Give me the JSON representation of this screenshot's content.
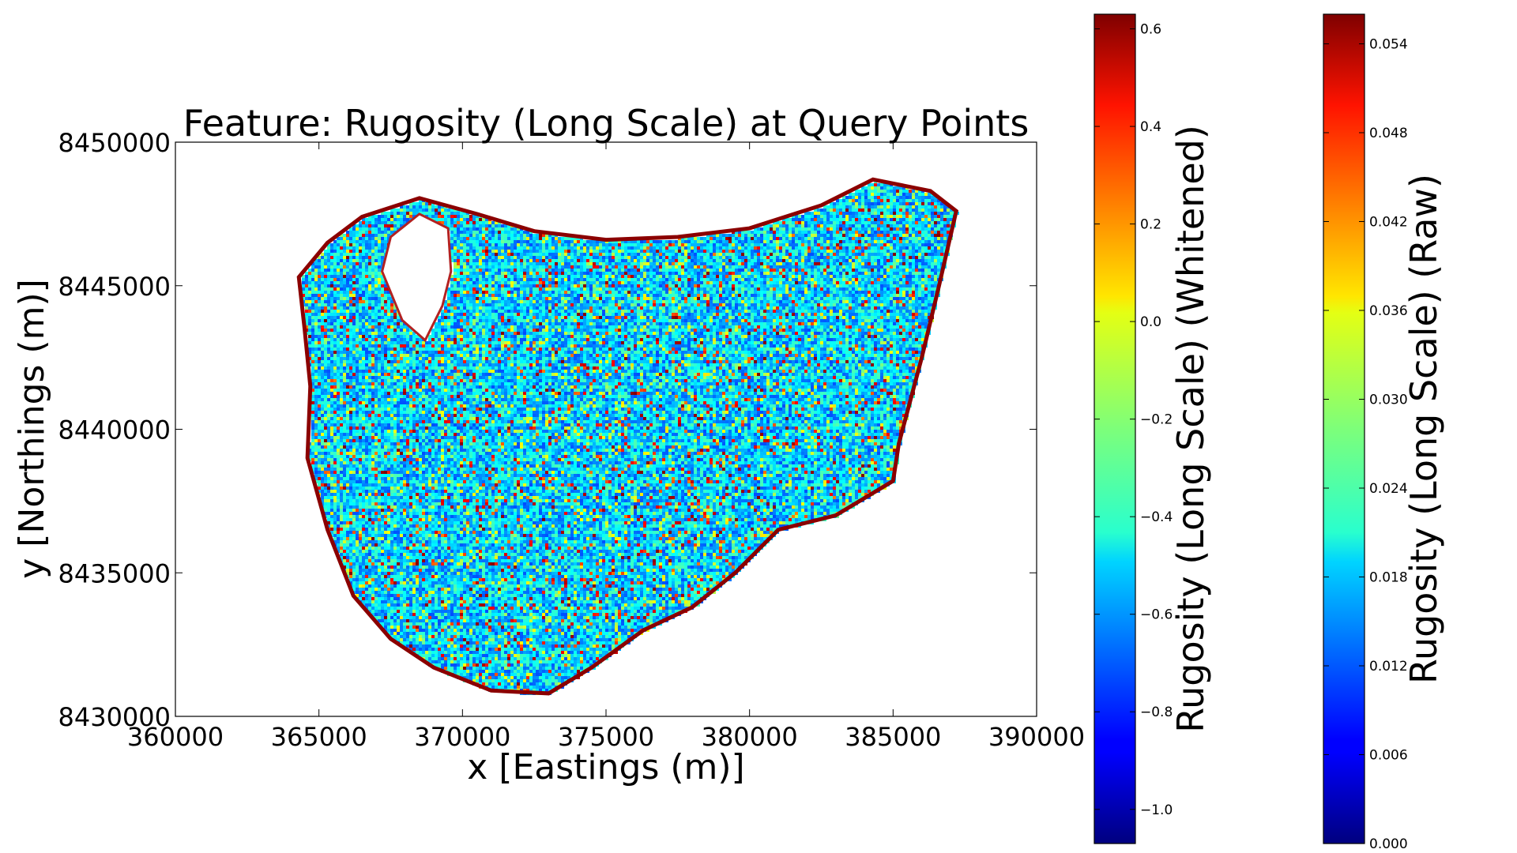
{
  "chart_data": {
    "type": "scatter",
    "title": "Feature: Rugosity (Long Scale) at Query Points",
    "xlabel": "x [Eastings (m)]",
    "ylabel": "y [Northings (m)]",
    "xlim": [
      360000,
      390000
    ],
    "ylim": [
      8430000,
      8450000
    ],
    "x_ticks": [
      360000,
      365000,
      370000,
      375000,
      380000,
      385000,
      390000
    ],
    "y_ticks": [
      8430000,
      8435000,
      8440000,
      8445000,
      8450000
    ],
    "x_tick_labels": [
      "360000",
      "365000",
      "370000",
      "375000",
      "380000",
      "385000",
      "390000"
    ],
    "y_tick_labels": [
      "8430000",
      "8435000",
      "8440000",
      "8445000",
      "8450000"
    ],
    "grid": false,
    "colormap": "jet",
    "region_outline": [
      [
        365300,
        8446500
      ],
      [
        366500,
        8447400
      ],
      [
        368500,
        8448050
      ],
      [
        370500,
        8447500
      ],
      [
        372500,
        8446900
      ],
      [
        375000,
        8446600
      ],
      [
        377500,
        8446700
      ],
      [
        380000,
        8447000
      ],
      [
        382500,
        8447800
      ],
      [
        384300,
        8448700
      ],
      [
        386300,
        8448300
      ],
      [
        387200,
        8447600
      ],
      [
        386600,
        8445000
      ],
      [
        386000,
        8442500
      ],
      [
        385200,
        8439500
      ],
      [
        385000,
        8438200
      ],
      [
        383000,
        8437000
      ],
      [
        381000,
        8436500
      ],
      [
        379500,
        8435000
      ],
      [
        378000,
        8433800
      ],
      [
        376300,
        8433000
      ],
      [
        374500,
        8431700
      ],
      [
        373000,
        8430800
      ],
      [
        371000,
        8430900
      ],
      [
        369000,
        8431700
      ],
      [
        367500,
        8432700
      ],
      [
        366200,
        8434200
      ],
      [
        365300,
        8436500
      ],
      [
        364600,
        8439000
      ],
      [
        364700,
        8441500
      ],
      [
        364500,
        8443500
      ],
      [
        364300,
        8445300
      ]
    ],
    "hole_outline": [
      [
        367200,
        8445500
      ],
      [
        367500,
        8446700
      ],
      [
        368500,
        8447500
      ],
      [
        369500,
        8447000
      ],
      [
        369600,
        8445500
      ],
      [
        369300,
        8444300
      ],
      [
        368700,
        8443100
      ],
      [
        367900,
        8443800
      ]
    ],
    "colorbars": [
      {
        "label": "Rugosity (Long Scale) (Whitened)",
        "range": [
          -1.07,
          0.63
        ],
        "ticks": [
          -1.0,
          -0.8,
          -0.6,
          -0.4,
          -0.2,
          0.0,
          0.2,
          0.4,
          0.6
        ],
        "tick_labels": [
          "−1.0",
          "−0.8",
          "−0.6",
          "−0.4",
          "−0.2",
          "0.0",
          "0.2",
          "0.4",
          "0.6"
        ]
      },
      {
        "label": "Rugosity (Long Scale) (Raw)",
        "range": [
          0.0,
          0.056
        ],
        "ticks": [
          0.0,
          0.006,
          0.012,
          0.018,
          0.024,
          0.03,
          0.036,
          0.042,
          0.048,
          0.054
        ],
        "tick_labels": [
          "0.000",
          "0.006",
          "0.012",
          "0.018",
          "0.024",
          "0.030",
          "0.036",
          "0.042",
          "0.048",
          "0.054"
        ]
      }
    ]
  }
}
